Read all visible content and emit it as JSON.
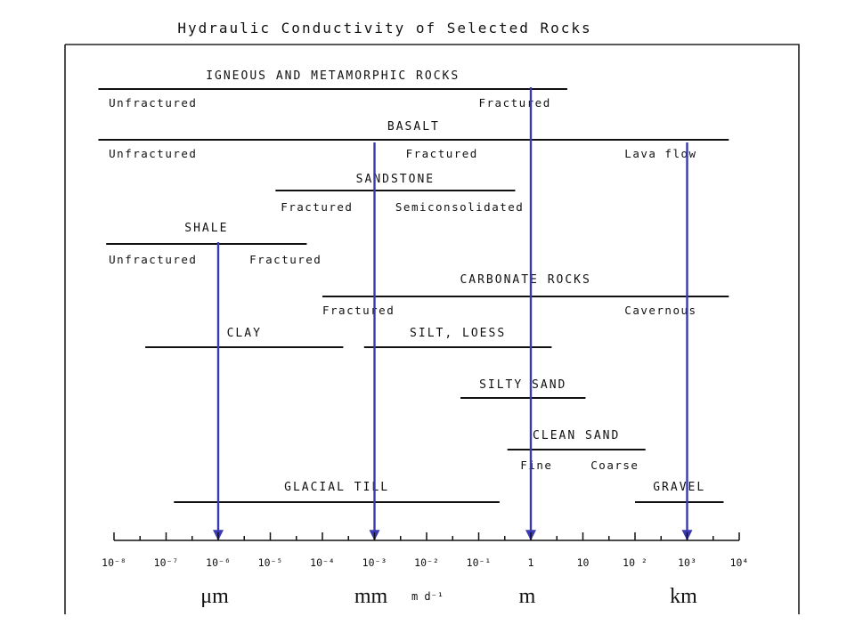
{
  "title": "Hydraulic Conductivity of Selected Rocks",
  "axis": {
    "unit_label": "m d⁻¹",
    "tick_labels": [
      "10⁻⁸",
      "10⁻⁷",
      "10⁻⁶",
      "10⁻⁵",
      "10⁻⁴",
      "10⁻³",
      "10⁻²",
      "10⁻¹",
      "1",
      "10",
      "10 ²",
      "10³",
      "10⁴"
    ]
  },
  "groups": [
    {
      "name": "IGNEOUS AND METAMORPHIC ROCKS",
      "range": [
        -8.3,
        0.7
      ],
      "subs": [
        {
          "label": "Unfractured",
          "pos": -8.1
        },
        {
          "label": "Fractured",
          "pos": -1.0
        }
      ]
    },
    {
      "name": "BASALT",
      "range": [
        -8.3,
        3.8
      ],
      "subs": [
        {
          "label": "Unfractured",
          "pos": -8.1
        },
        {
          "label": "Fractured",
          "pos": -2.4
        },
        {
          "label": "Lava flow",
          "pos": 1.8
        }
      ]
    },
    {
      "name": "SANDSTONE",
      "range": [
        -4.9,
        -0.3
      ],
      "subs": [
        {
          "label": "Fractured",
          "pos": -4.8
        },
        {
          "label": "Semiconsolidated",
          "pos": -2.6
        }
      ]
    },
    {
      "name": "SHALE",
      "range": [
        -8.15,
        -4.3
      ],
      "subs": [
        {
          "label": "Unfractured",
          "pos": -8.1
        },
        {
          "label": "Fractured",
          "pos": -5.4
        }
      ]
    },
    {
      "name": "CARBONATE ROCKS",
      "range": [
        -4.0,
        3.8
      ],
      "subs": [
        {
          "label": "Fractured",
          "pos": -4.0
        },
        {
          "label": "Cavernous",
          "pos": 1.8
        }
      ]
    },
    {
      "name": "CLAY",
      "range": [
        -7.4,
        -3.6
      ],
      "subs": []
    },
    {
      "name": "SILT, LOESS",
      "range": [
        -3.2,
        0.4
      ],
      "subs": []
    },
    {
      "name": "SILTY SAND",
      "range": [
        -1.35,
        1.05
      ],
      "subs": []
    },
    {
      "name": "CLEAN SAND",
      "range": [
        -0.45,
        2.2
      ],
      "subs": [
        {
          "label": "Fine",
          "pos": -0.2
        },
        {
          "label": "Coarse",
          "pos": 1.15
        }
      ]
    },
    {
      "name": "GLACIAL TILL",
      "range": [
        -6.85,
        -0.6
      ],
      "subs": []
    },
    {
      "name": "GRAVEL",
      "range": [
        2.0,
        3.7
      ],
      "subs": []
    }
  ],
  "markers": [
    {
      "label": "μm",
      "value": -6
    },
    {
      "label": "mm",
      "value": -3
    },
    {
      "label": "m",
      "value": 0
    },
    {
      "label": "km",
      "value": 3
    }
  ],
  "colors": {
    "arrow": "#3a3ab0",
    "ink": "#111111"
  }
}
